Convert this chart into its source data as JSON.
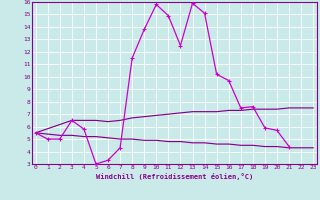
{
  "xlabel": "Windchill (Refroidissement éolien,°C)",
  "x_main": [
    0,
    1,
    2,
    3,
    4,
    5,
    6,
    7,
    8,
    9,
    10,
    11,
    12,
    13,
    14,
    15,
    16,
    17,
    18,
    19,
    20,
    21
  ],
  "y_main": [
    5.5,
    5.0,
    5.0,
    6.5,
    5.8,
    3.0,
    3.3,
    4.3,
    11.5,
    13.8,
    15.8,
    14.9,
    12.5,
    15.9,
    15.1,
    10.2,
    9.7,
    7.5,
    7.6,
    5.9,
    5.7,
    4.4
  ],
  "x_upper": [
    0,
    3,
    5,
    6,
    7,
    8,
    9,
    10,
    11,
    12,
    13,
    14,
    15,
    16,
    17,
    18,
    19,
    20,
    21,
    22,
    23
  ],
  "y_upper": [
    5.5,
    6.5,
    6.5,
    6.4,
    6.5,
    6.7,
    6.8,
    6.9,
    7.0,
    7.1,
    7.2,
    7.2,
    7.2,
    7.3,
    7.3,
    7.4,
    7.4,
    7.4,
    7.5,
    7.5,
    7.5
  ],
  "x_lower": [
    0,
    1,
    2,
    3,
    4,
    5,
    6,
    7,
    8,
    9,
    10,
    11,
    12,
    13,
    14,
    15,
    16,
    17,
    18,
    19,
    20,
    21,
    22,
    23
  ],
  "y_lower": [
    5.5,
    5.4,
    5.3,
    5.3,
    5.2,
    5.2,
    5.1,
    5.0,
    5.0,
    4.9,
    4.9,
    4.8,
    4.8,
    4.7,
    4.7,
    4.6,
    4.6,
    4.5,
    4.5,
    4.4,
    4.4,
    4.3,
    4.3,
    4.3
  ],
  "ylim_min": 3,
  "ylim_max": 16,
  "xlim_min": 0,
  "xlim_max": 23,
  "bg_color": "#caeaea",
  "line_color_main": "#cc00cc",
  "line_color_flat": "#880088",
  "grid_color": "#ffffff",
  "tick_color": "#880088",
  "label_fontsize": 5.0,
  "tick_fontsize": 4.5
}
